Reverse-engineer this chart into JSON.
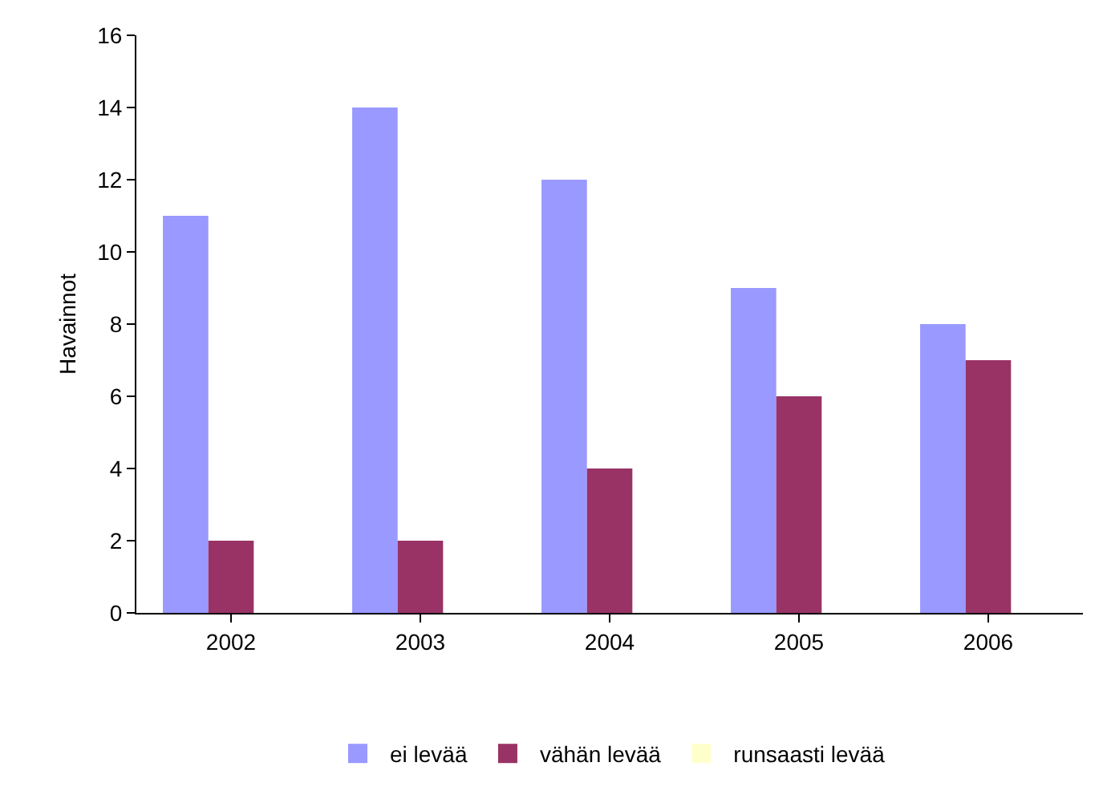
{
  "chart_data": {
    "type": "bar",
    "ylabel": "Havainnot",
    "categories": [
      "2002",
      "2003",
      "2004",
      "2005",
      "2006"
    ],
    "series": [
      {
        "name": "ei levää",
        "color": "#9999ff",
        "values": [
          11,
          14,
          12,
          9,
          8
        ]
      },
      {
        "name": "vähän levää",
        "color": "#993366",
        "values": [
          2,
          2,
          4,
          6,
          7
        ]
      },
      {
        "name": "runsaasti levää",
        "color": "#ffffcc",
        "values": [
          0,
          0,
          0,
          0,
          0
        ]
      }
    ],
    "ylim": [
      0,
      16
    ],
    "yticks": [
      0,
      2,
      4,
      6,
      8,
      10,
      12,
      14,
      16
    ],
    "grid": false,
    "legend": "bottom"
  }
}
